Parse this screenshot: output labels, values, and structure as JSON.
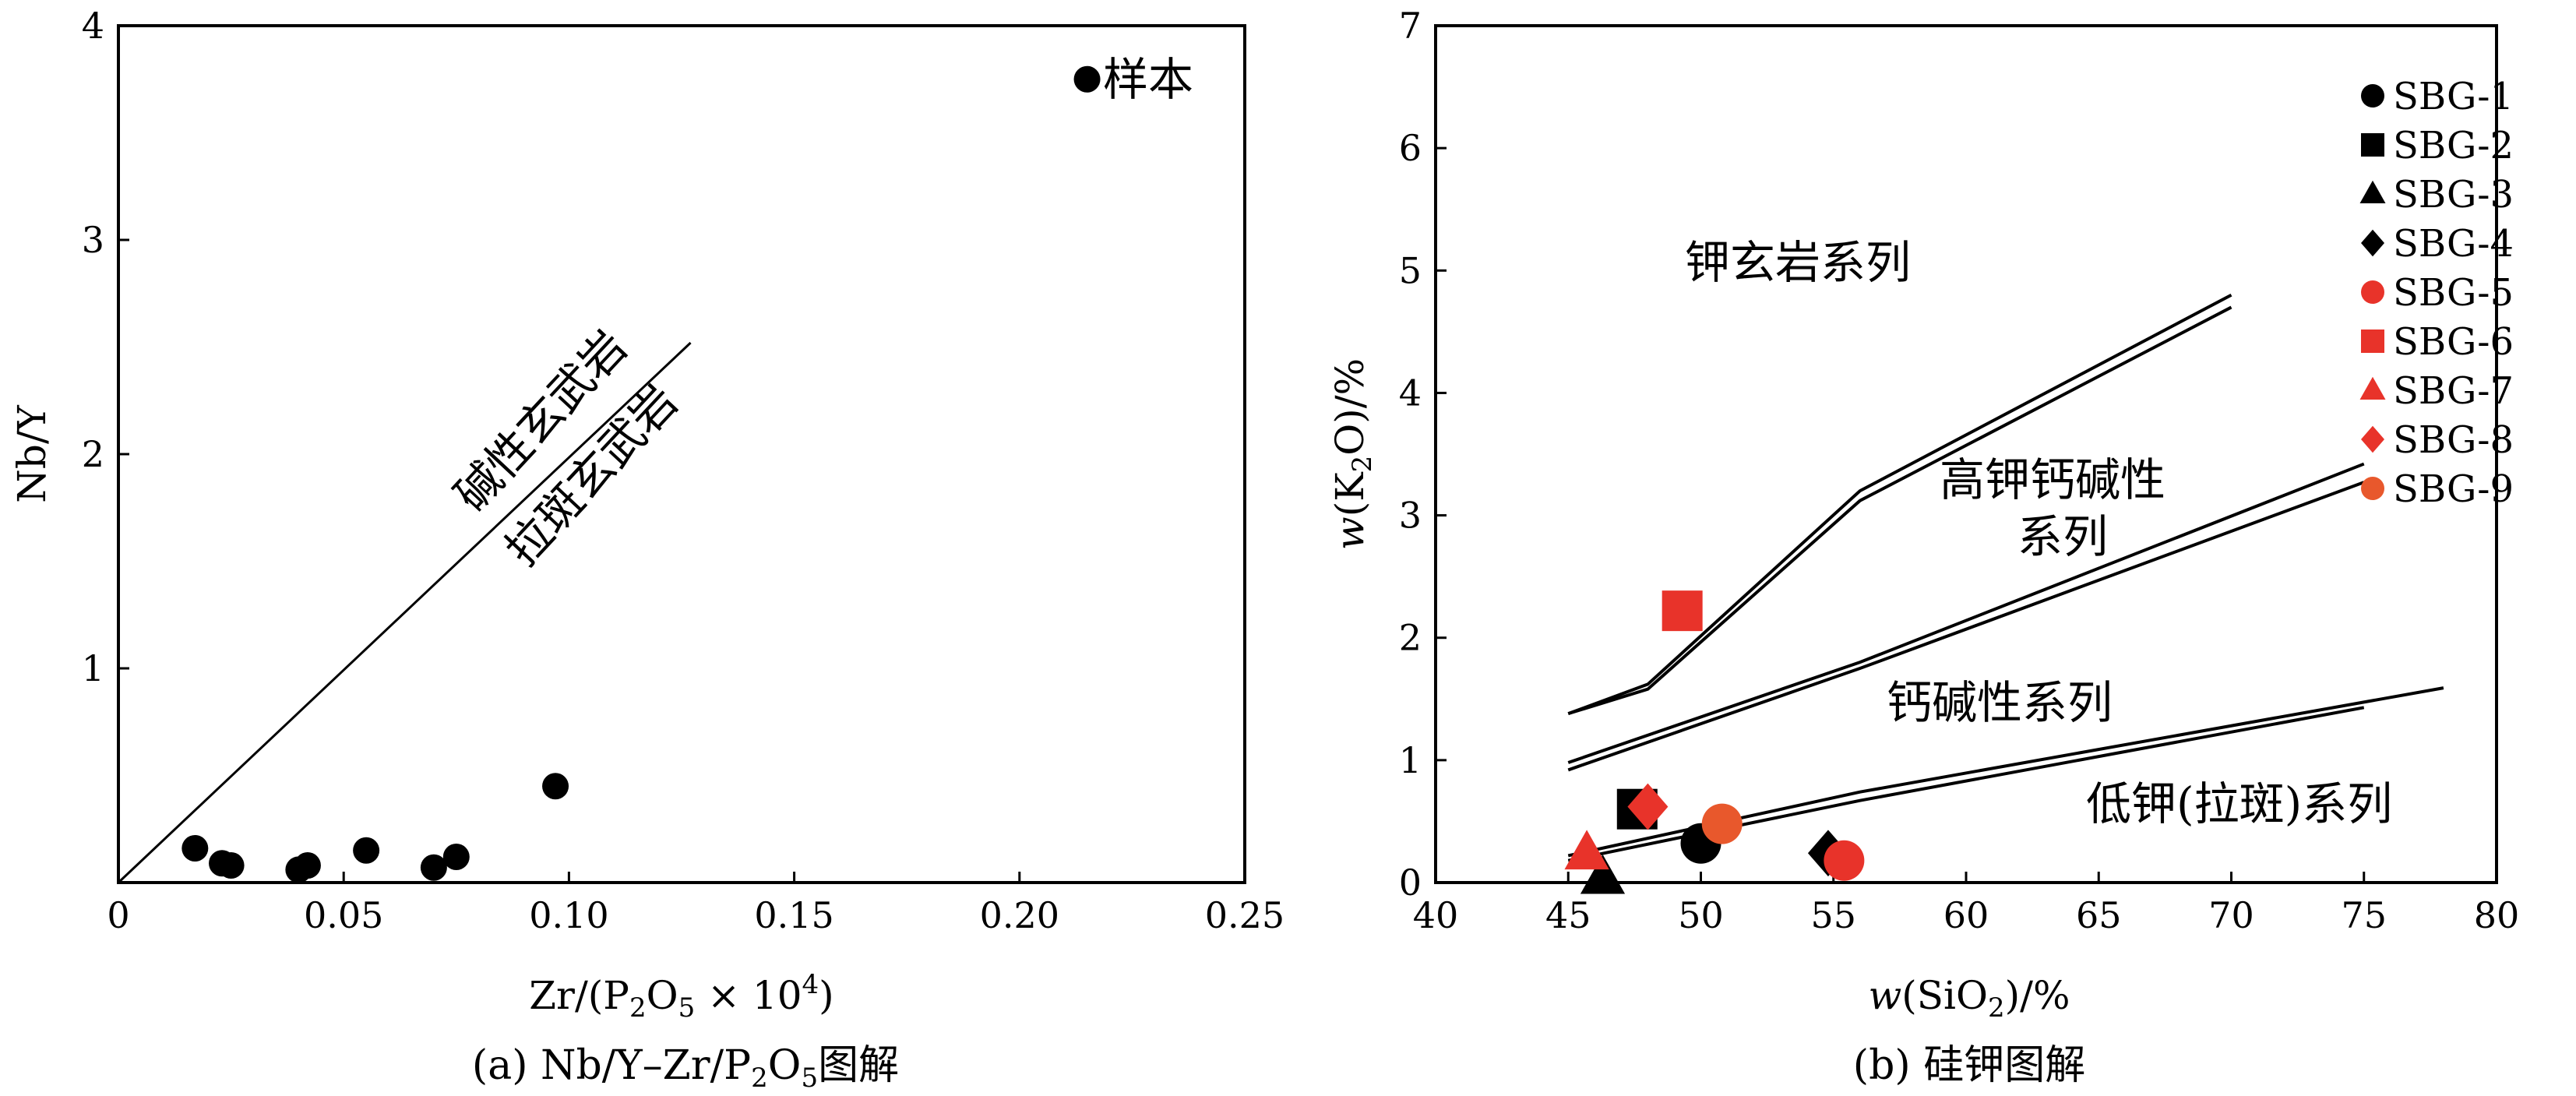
{
  "chart_data": [
    {
      "panel": "a",
      "type": "scatter",
      "caption": "(a) Nb/Y–Zr/P2O5图解",
      "caption_parts": {
        "lead": "(a) Nb/Y–Zr/P",
        "sub1": "2",
        "mid": "O",
        "sub2": "5",
        "tail": "图解"
      },
      "ylabel": "Nb/Y",
      "xlabel": "Zr/(P2O5×10^4)",
      "xlabel_parts": {
        "lead": "Zr/(P",
        "sub1": "2",
        "mid": "O",
        "sub2": "5",
        "times": " × 10",
        "sup": "4",
        "tail": ")"
      },
      "xlim": [
        0,
        0.25
      ],
      "ylim": [
        0,
        4
      ],
      "xticks": [
        0,
        0.05,
        0.1,
        0.15,
        0.2,
        0.25
      ],
      "xtick_labels": [
        "0",
        "0.05",
        "0.10",
        "0.15",
        "0.20",
        "0.25"
      ],
      "yticks": [
        1,
        2,
        3,
        4
      ],
      "ytick_labels": [
        "1",
        "2",
        "3",
        "4"
      ],
      "legend": {
        "label": "样本",
        "x": 0.215,
        "y": 3.75
      },
      "divider": {
        "x": [
          0,
          0.127
        ],
        "y": [
          0,
          2.52
        ]
      },
      "field_labels": [
        "碱性玄武岩",
        "拉斑玄武岩"
      ],
      "points": [
        {
          "x": 0.017,
          "y": 0.16
        },
        {
          "x": 0.023,
          "y": 0.09
        },
        {
          "x": 0.025,
          "y": 0.08
        },
        {
          "x": 0.04,
          "y": 0.06
        },
        {
          "x": 0.042,
          "y": 0.08
        },
        {
          "x": 0.055,
          "y": 0.15
        },
        {
          "x": 0.07,
          "y": 0.07
        },
        {
          "x": 0.075,
          "y": 0.12
        },
        {
          "x": 0.097,
          "y": 0.45
        }
      ]
    },
    {
      "panel": "b",
      "type": "scatter",
      "caption": "(b) 硅钾图解",
      "ylabel": "w(K2O)/%",
      "ylabel_parts": {
        "w": "w",
        "lead": "(K",
        "sub": "2",
        "tail": "O)/%"
      },
      "xlabel": "w(SiO2)/%",
      "xlabel_parts": {
        "w": "w",
        "lead": "(SiO",
        "sub": "2",
        "tail": ")/%"
      },
      "xlim": [
        40,
        80
      ],
      "ylim": [
        0,
        7
      ],
      "xticks": [
        40,
        45,
        50,
        55,
        60,
        65,
        70,
        75,
        80
      ],
      "xtick_labels": [
        "40",
        "45",
        "50",
        "55",
        "60",
        "65",
        "70",
        "75",
        "80"
      ],
      "yticks": [
        0,
        1,
        2,
        3,
        4,
        5,
        6,
        7
      ],
      "ytick_labels": [
        "0",
        "1",
        "2",
        "3",
        "4",
        "5",
        "6",
        "7"
      ],
      "field_labels": {
        "shoshonite": "钾玄岩系列",
        "high_k_calc_alkaline": [
          "高钾钙碱性",
          "系列"
        ],
        "calc_alkaline": "钙碱性系列",
        "low_k_tholeiite": "低钾(拉斑)系列"
      },
      "boundaries": [
        {
          "name": "shoshonite-upper",
          "x": [
            45,
            48,
            56,
            70
          ],
          "y": [
            1.38,
            1.62,
            3.2,
            4.8
          ]
        },
        {
          "name": "shoshonite-lower",
          "x": [
            45,
            48,
            56,
            70
          ],
          "y": [
            1.38,
            1.58,
            3.12,
            4.7
          ]
        },
        {
          "name": "highk-upper",
          "x": [
            45,
            56,
            75
          ],
          "y": [
            0.98,
            1.8,
            3.42
          ]
        },
        {
          "name": "highk-lower",
          "x": [
            45,
            56,
            75
          ],
          "y": [
            0.92,
            1.75,
            3.27
          ]
        },
        {
          "name": "lowk-upper",
          "x": [
            45,
            56,
            78
          ],
          "y": [
            0.22,
            0.74,
            1.59
          ]
        },
        {
          "name": "lowk-lower",
          "x": [
            45,
            56,
            75
          ],
          "y": [
            0.18,
            0.67,
            1.43
          ]
        }
      ],
      "series": [
        {
          "name": "SBG-1",
          "marker": "circle",
          "color": "#000000",
          "points": [
            {
              "x": 50.0,
              "y": 0.32
            }
          ]
        },
        {
          "name": "SBG-2",
          "marker": "square",
          "color": "#000000",
          "points": [
            {
              "x": 47.6,
              "y": 0.6
            }
          ]
        },
        {
          "name": "SBG-3",
          "marker": "triangle",
          "color": "#000000",
          "points": [
            {
              "x": 46.3,
              "y": 0.04
            }
          ]
        },
        {
          "name": "SBG-4",
          "marker": "diamond",
          "color": "#000000",
          "points": [
            {
              "x": 54.8,
              "y": 0.24
            }
          ]
        },
        {
          "name": "SBG-5",
          "marker": "circle",
          "color": "#e8332a",
          "points": [
            {
              "x": 55.4,
              "y": 0.18
            }
          ]
        },
        {
          "name": "SBG-6",
          "marker": "square",
          "color": "#e8332a",
          "points": [
            {
              "x": 49.3,
              "y": 2.22
            }
          ]
        },
        {
          "name": "SBG-7",
          "marker": "triangle",
          "color": "#e8332a",
          "points": [
            {
              "x": 45.7,
              "y": 0.24
            }
          ]
        },
        {
          "name": "SBG-8",
          "marker": "diamond",
          "color": "#e8332a",
          "points": [
            {
              "x": 48.0,
              "y": 0.62
            }
          ]
        },
        {
          "name": "SBG-9",
          "marker": "circle",
          "color": "#e8582c",
          "points": [
            {
              "x": 50.8,
              "y": 0.48
            }
          ]
        }
      ]
    }
  ]
}
